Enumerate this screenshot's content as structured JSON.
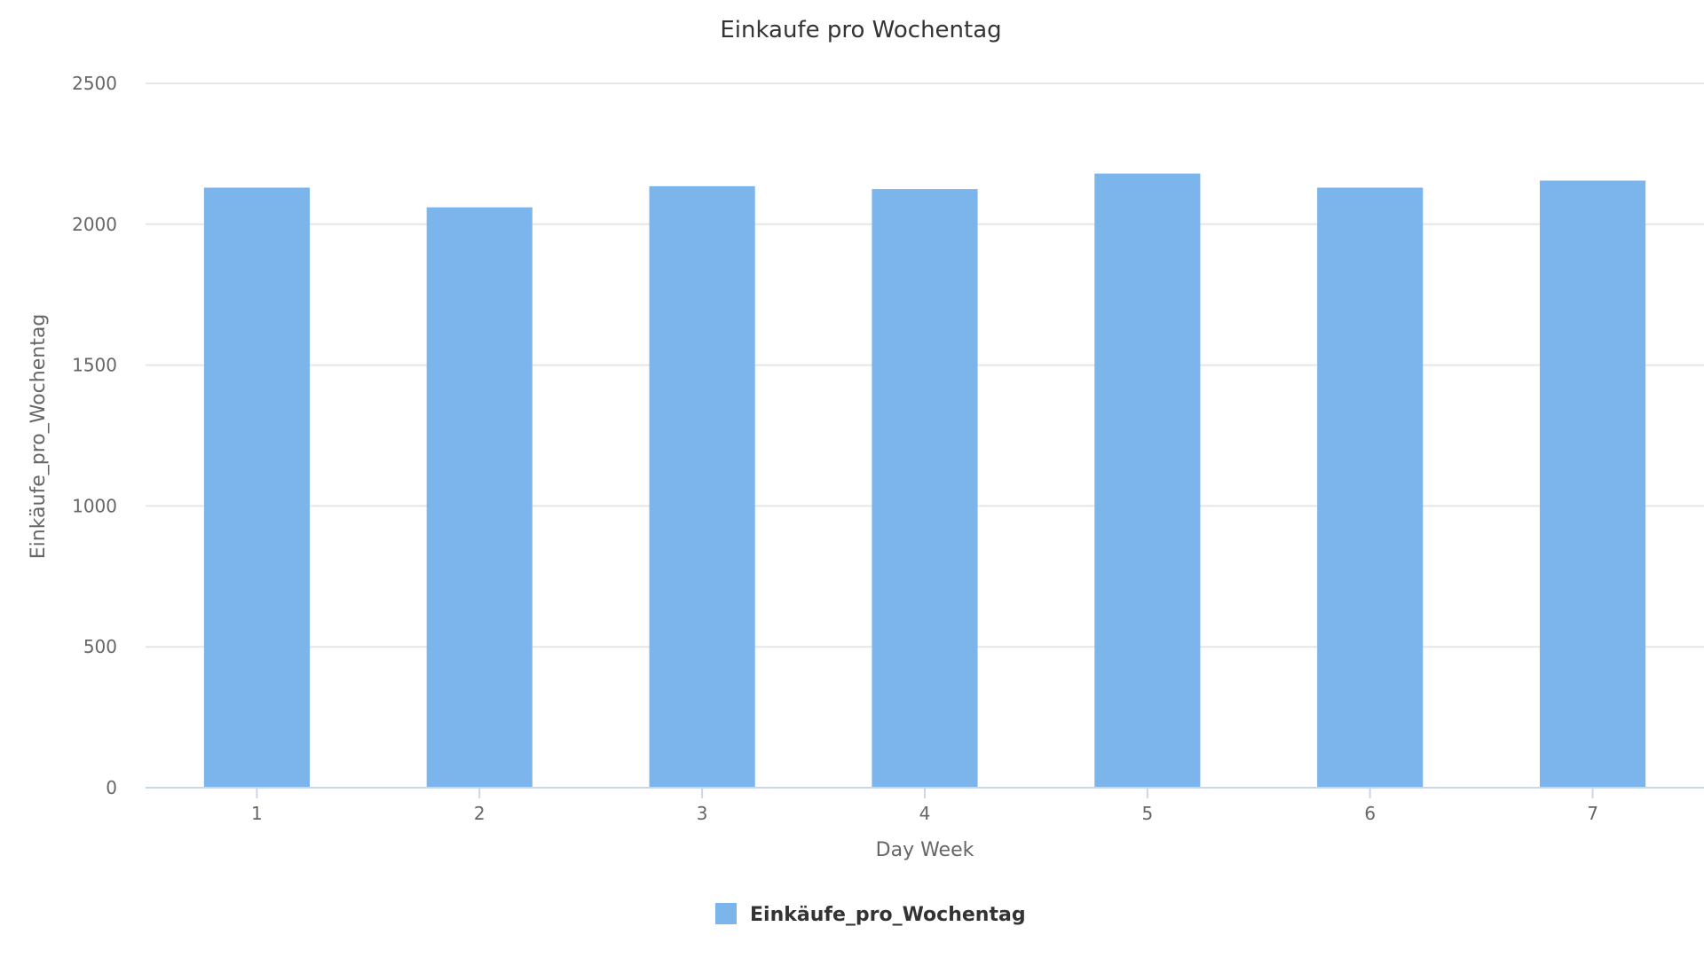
{
  "chart_data": {
    "type": "bar",
    "title": "Einkaufe pro Wochentag",
    "xlabel": "Day Week",
    "ylabel": "Einkäufe_pro_Wochentag",
    "categories": [
      "1",
      "2",
      "3",
      "4",
      "5",
      "6",
      "7"
    ],
    "series": [
      {
        "name": "Einkäufe_pro_Wochentag",
        "values": [
          2130,
          2060,
          2135,
          2125,
          2180,
          2130,
          2155
        ],
        "color": "#7cb5ec"
      }
    ],
    "ylim": [
      0,
      2500
    ],
    "yticks": [
      0,
      500,
      1000,
      1500,
      2000,
      2500
    ],
    "grid": true,
    "legend_position": "bottom-center"
  }
}
